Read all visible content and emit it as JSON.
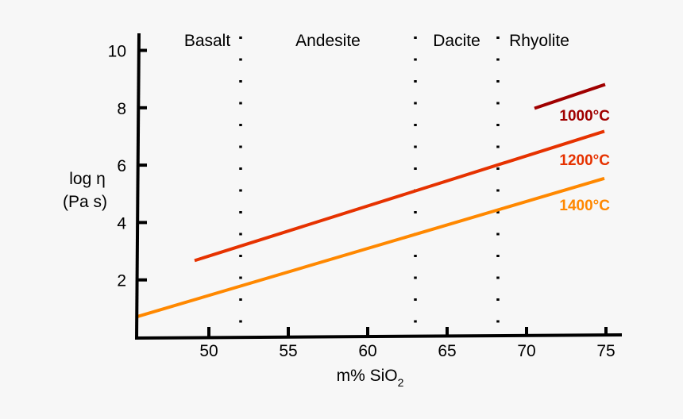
{
  "chart_data": {
    "type": "line",
    "title": "",
    "xlabel": "m% SiO",
    "xlabel_subscript": "2",
    "ylabel": [
      "log η",
      "(Pa s)"
    ],
    "xlim": [
      45.5,
      76
    ],
    "ylim": [
      0,
      10.5
    ],
    "xticks": [
      50,
      55,
      60,
      65,
      70,
      75
    ],
    "yticks": [
      2,
      4,
      6,
      8,
      10
    ],
    "grid": false,
    "regions": [
      {
        "label": "Basalt",
        "from": 45.5,
        "to": 52
      },
      {
        "label": "Andesite",
        "from": 52,
        "to": 63
      },
      {
        "label": "Dacite",
        "from": 63,
        "to": 68.2
      },
      {
        "label": "Rhyolite",
        "from": 68.2,
        "to": 76
      }
    ],
    "region_boundaries": [
      52,
      63,
      68.2
    ],
    "series": [
      {
        "name": "1000°C",
        "color": "#a00000",
        "x": [
          70.5,
          74.95
        ],
        "y": [
          7.97,
          8.8
        ]
      },
      {
        "name": "1200°C",
        "color": "#e63200",
        "x": [
          49.1,
          74.9
        ],
        "y": [
          2.67,
          7.17
        ]
      },
      {
        "name": "1400°C",
        "color": "#ff8800",
        "x": [
          45.5,
          74.9
        ],
        "y": [
          0.72,
          5.53
        ]
      }
    ]
  }
}
